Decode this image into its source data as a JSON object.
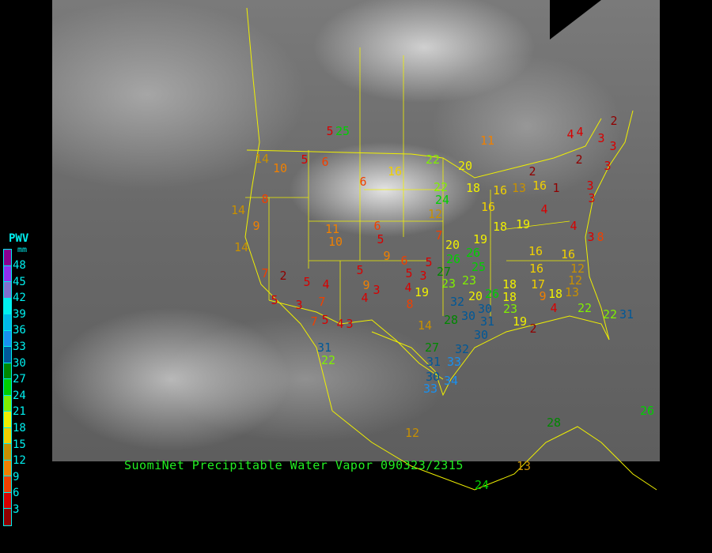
{
  "caption": "SuomiNet Precipitable Water Vapor 090323/2315",
  "legend": {
    "title": "PWV",
    "unit": "mm",
    "labels": [
      "48",
      "45",
      "42",
      "39",
      "36",
      "33",
      "30",
      "27",
      "24",
      "21",
      "18",
      "15",
      "12",
      "9",
      "6",
      "3"
    ],
    "colors": [
      "#8b0090",
      "#9030f0",
      "#8070d0",
      "#00f0f0",
      "#00b8e8",
      "#1890f0",
      "#005898",
      "#008800",
      "#00d000",
      "#80f000",
      "#f0f000",
      "#f0d000",
      "#c89000",
      "#f08000",
      "#f04000",
      "#d80000",
      "#900000"
    ]
  },
  "stations": [
    5,
    14,
    10,
    5,
    6,
    6,
    16,
    22,
    11,
    20,
    4,
    2,
    3,
    3,
    2,
    3,
    3,
    14,
    8,
    14,
    9,
    11,
    10,
    6,
    5,
    9,
    6,
    22,
    24,
    12,
    18,
    16,
    16,
    13,
    4,
    16,
    2,
    1,
    4,
    3,
    3,
    12,
    7,
    20,
    19,
    18,
    19,
    4,
    8,
    26,
    25,
    27,
    23,
    23,
    26,
    20,
    18,
    16,
    16,
    16,
    12,
    13,
    7,
    2,
    5,
    4,
    7,
    5,
    4,
    3,
    4,
    3,
    5,
    5,
    5,
    3,
    8,
    19,
    26,
    32,
    30,
    30,
    31,
    18,
    14,
    22,
    28,
    30,
    32,
    33,
    23,
    19,
    17,
    18,
    27,
    31,
    33,
    34,
    30,
    31,
    9,
    4,
    5,
    7,
    3,
    4,
    22,
    31,
    22,
    9,
    12,
    13,
    24,
    2,
    28,
    26,
    25
  ]
}
